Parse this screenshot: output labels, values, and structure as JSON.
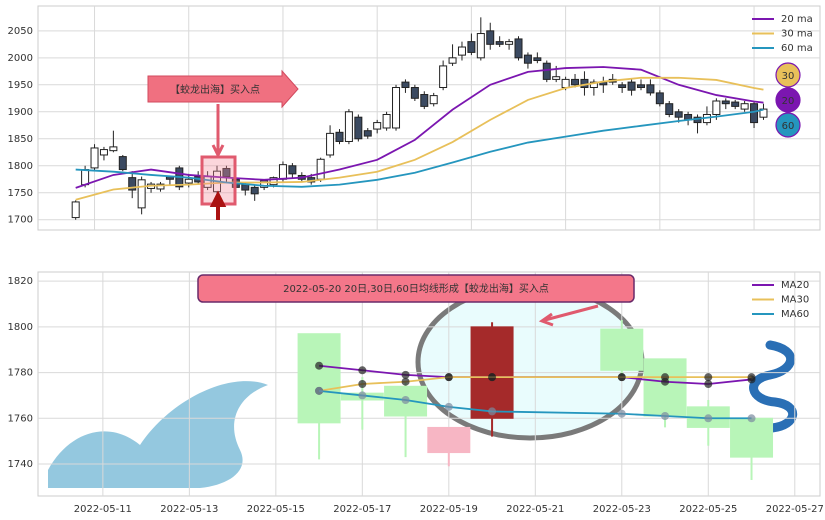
{
  "chart_data": [
    {
      "type": "candlestick",
      "xlim": [
        -4,
        79
      ],
      "ylim": [
        1681,
        2096
      ],
      "yticks": [
        1700,
        1750,
        1800,
        1850,
        1900,
        1950,
        2000,
        2050
      ],
      "xticks": [
        2,
        12,
        22,
        32,
        42,
        52,
        62,
        72
      ],
      "x_tick_labels": false,
      "grid": true,
      "open": [
        1704,
        1765,
        1796,
        1820,
        1828,
        1817,
        1778,
        1722,
        1758,
        1757,
        1780,
        1796,
        1768,
        1780,
        1760,
        1752,
        1795,
        1775,
        1765,
        1760,
        1760,
        1765,
        1775,
        1800,
        1782,
        1778,
        1775,
        1820,
        1862,
        1845,
        1890,
        1865,
        1868,
        1870,
        1870,
        1955,
        1945,
        1932,
        1915,
        1945,
        1990,
        2005,
        2030,
        2000,
        2050,
        2030,
        2025,
        2035,
        2005,
        2000,
        1990,
        1960,
        1945,
        1960,
        1960,
        1945,
        1955,
        1960,
        1950,
        1955,
        1950,
        1950,
        1935,
        1915,
        1900,
        1895,
        1890,
        1880,
        1895,
        1920,
        1918,
        1905,
        1915,
        1890
      ],
      "high": [
        1736,
        1800,
        1840,
        1835,
        1865,
        1820,
        1790,
        1780,
        1770,
        1770,
        1782,
        1800,
        1785,
        1790,
        1790,
        1800,
        1800,
        1780,
        1770,
        1765,
        1775,
        1780,
        1808,
        1805,
        1788,
        1785,
        1815,
        1875,
        1868,
        1905,
        1895,
        1870,
        1885,
        1900,
        1950,
        1960,
        1950,
        1938,
        1935,
        1995,
        2025,
        2030,
        2045,
        2075,
        2065,
        2040,
        2035,
        2040,
        2010,
        2010,
        1995,
        1985,
        1965,
        1970,
        1975,
        1960,
        1965,
        1970,
        1955,
        1960,
        1960,
        1960,
        1940,
        1920,
        1905,
        1900,
        1895,
        1910,
        1925,
        1925,
        1922,
        1920,
        1920,
        1915
      ],
      "low": [
        1700,
        1760,
        1790,
        1810,
        1825,
        1790,
        1740,
        1710,
        1750,
        1752,
        1765,
        1755,
        1760,
        1765,
        1755,
        1745,
        1770,
        1755,
        1745,
        1735,
        1755,
        1760,
        1770,
        1778,
        1770,
        1765,
        1770,
        1815,
        1840,
        1840,
        1845,
        1850,
        1860,
        1865,
        1865,
        1935,
        1920,
        1905,
        1910,
        1940,
        1985,
        1995,
        2005,
        1995,
        2015,
        2020,
        2015,
        1995,
        1980,
        1990,
        1955,
        1955,
        1940,
        1945,
        1930,
        1930,
        1935,
        1950,
        1935,
        1930,
        1940,
        1930,
        1910,
        1890,
        1880,
        1875,
        1860,
        1875,
        1885,
        1905,
        1905,
        1900,
        1870,
        1885
      ],
      "close": [
        1733,
        1793,
        1833,
        1830,
        1835,
        1793,
        1755,
        1774,
        1766,
        1766,
        1775,
        1761,
        1775,
        1770,
        1780,
        1790,
        1780,
        1760,
        1755,
        1748,
        1772,
        1778,
        1802,
        1785,
        1775,
        1770,
        1812,
        1860,
        1845,
        1900,
        1850,
        1855,
        1880,
        1895,
        1945,
        1945,
        1925,
        1910,
        1930,
        1985,
        2000,
        2020,
        2010,
        2045,
        2025,
        2025,
        2030,
        2000,
        1990,
        1995,
        1960,
        1965,
        1960,
        1950,
        1945,
        1955,
        1950,
        1955,
        1945,
        1940,
        1945,
        1935,
        1915,
        1895,
        1890,
        1885,
        1880,
        1895,
        1920,
        1915,
        1910,
        1915,
        1880,
        1905
      ],
      "up_color": "#ffffff",
      "down_color": "#3b4a61",
      "series": [
        {
          "name": "20 ma",
          "color": "#7b16b0",
          "badge": "20",
          "x": [
            0,
            4,
            8,
            12,
            16,
            20,
            24,
            28,
            32,
            36,
            40,
            44,
            48,
            52,
            56,
            60,
            64,
            68,
            72,
            73
          ],
          "values": [
            1759,
            1783,
            1793,
            1783,
            1778,
            1774,
            1778,
            1793,
            1811,
            1848,
            1904,
            1950,
            1974,
            1981,
            1983,
            1978,
            1950,
            1931,
            1919,
            1917
          ]
        },
        {
          "name": "30 ma",
          "color": "#e8c05a",
          "badge": "30",
          "x": [
            0,
            4,
            8,
            12,
            16,
            20,
            24,
            28,
            32,
            36,
            40,
            44,
            48,
            52,
            56,
            60,
            64,
            68,
            72,
            73
          ],
          "values": [
            1737,
            1756,
            1763,
            1765,
            1769,
            1769,
            1770,
            1778,
            1789,
            1811,
            1844,
            1885,
            1922,
            1944,
            1956,
            1963,
            1963,
            1959,
            1944,
            1941
          ]
        },
        {
          "name": "60 ma",
          "color": "#2596be",
          "badge": "60",
          "x": [
            0,
            4,
            8,
            12,
            16,
            20,
            24,
            28,
            32,
            36,
            40,
            44,
            48,
            52,
            56,
            60,
            64,
            68,
            72,
            73
          ],
          "values": [
            1793,
            1789,
            1783,
            1778,
            1769,
            1763,
            1761,
            1765,
            1774,
            1787,
            1806,
            1826,
            1843,
            1854,
            1865,
            1874,
            1883,
            1891,
            1900,
            1904
          ]
        }
      ],
      "legend": "upper right",
      "annotation": "【蛟龙出海】买入点"
    },
    {
      "type": "candlestick",
      "x": [
        "2022-05-16",
        "2022-05-17",
        "2022-05-18",
        "2022-05-19",
        "2022-05-20",
        "2022-05-23",
        "2022-05-24",
        "2022-05-25",
        "2022-05-26"
      ],
      "xlim": [
        "2022-05-09T12:00",
        "2022-05-27T14:00"
      ],
      "ylim": [
        1726,
        1824
      ],
      "yticks": [
        1740,
        1760,
        1780,
        1800,
        1820
      ],
      "xticks": [
        "2022-05-11",
        "2022-05-13",
        "2022-05-15",
        "2022-05-17",
        "2022-05-19",
        "2022-05-21",
        "2022-05-23",
        "2022-05-25",
        "2022-05-27"
      ],
      "x_tick_labels": true,
      "grid": true,
      "open": [
        1797,
        1771,
        1774,
        1745,
        1760,
        1799,
        1786,
        1765,
        1760
      ],
      "high": [
        1797,
        1778,
        1776,
        1756,
        1802,
        1803,
        1786,
        1768,
        1760
      ],
      "low": [
        1742,
        1755,
        1743,
        1739,
        1752,
        1778,
        1756,
        1748,
        1733
      ],
      "close": [
        1758,
        1768,
        1761,
        1756,
        1800,
        1781,
        1761,
        1756,
        1743
      ],
      "colors": [
        "#b8f5b8",
        "#b8f5b8",
        "#b8f5b8",
        "#f7b6c4",
        "#a52a2a",
        "#b8f5b8",
        "#b8f5b8",
        "#b8f5b8",
        "#b8f5b8"
      ],
      "series": [
        {
          "name": "MA20",
          "color": "#7b16b0",
          "values": [
            1783,
            1781,
            1779,
            1778,
            1778,
            1778,
            1776,
            1775,
            1777
          ]
        },
        {
          "name": "MA30",
          "color": "#e8c05a",
          "values": [
            1772,
            1775,
            1776,
            1778,
            1778,
            1778,
            1778,
            1778,
            1778
          ]
        },
        {
          "name": "MA60",
          "color": "#2596be",
          "values": [
            1772,
            1770,
            1768,
            1765,
            1763,
            1762,
            1761,
            1760,
            1760
          ]
        }
      ],
      "legend": "upper right",
      "annotation": "2022-05-20 20日,30日,60日均线形成【蛟龙出海】买入点"
    }
  ]
}
